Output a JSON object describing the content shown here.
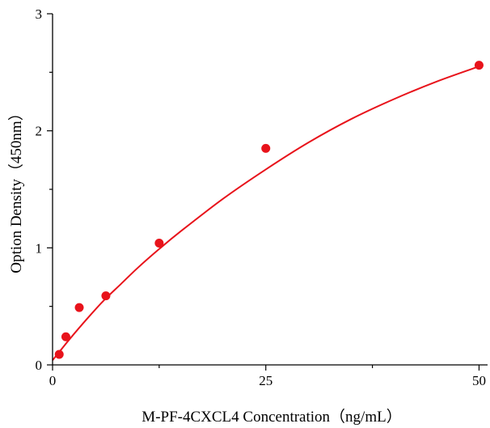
{
  "chart_data": {
    "type": "scatter",
    "title": "",
    "xlabel": "M-PF-4CXCL4 Concentration（ng/mL）",
    "ylabel": "Option Density（450nm）",
    "xlim": [
      0,
      51
    ],
    "ylim": [
      0,
      3
    ],
    "x_ticks": [
      0,
      25,
      50
    ],
    "x_tick_labels": [
      "0",
      "25",
      "50"
    ],
    "y_ticks": [
      0,
      1,
      2,
      3
    ],
    "y_tick_labels": [
      "0",
      "1",
      "2",
      "3"
    ],
    "grid": false,
    "legend": "none",
    "series": [
      {
        "x": [
          0.78,
          1.56,
          3.13,
          6.25,
          12.5,
          25,
          50
        ],
        "y": [
          0.09,
          0.24,
          0.49,
          0.59,
          1.04,
          1.85,
          2.56
        ],
        "color": "#e8131b"
      }
    ],
    "fit_curve": {
      "x": [
        0,
        1,
        2,
        4,
        6,
        8,
        10,
        12.5,
        15,
        20,
        25,
        30,
        35,
        40,
        45,
        50
      ],
      "y": [
        0.04,
        0.13,
        0.22,
        0.39,
        0.55,
        0.69,
        0.83,
        0.99,
        1.14,
        1.42,
        1.67,
        1.9,
        2.1,
        2.27,
        2.42,
        2.55
      ],
      "color": "#e8131b"
    }
  }
}
